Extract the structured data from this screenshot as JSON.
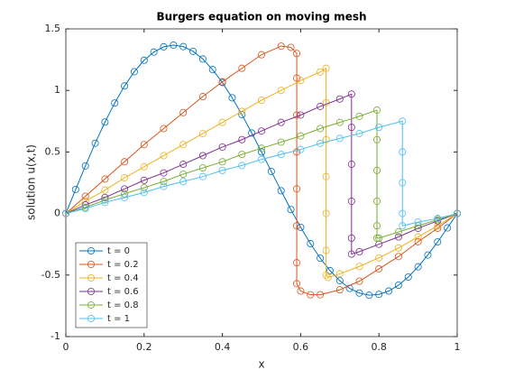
{
  "chart_data": {
    "type": "line",
    "title": "Burgers equation on moving mesh",
    "xlabel": "x",
    "ylabel": "solution u(x,t)",
    "xlim": [
      0,
      1
    ],
    "xticks": [
      0,
      0.2,
      0.4,
      0.6,
      0.8,
      1
    ],
    "ylim": [
      -1,
      1.5
    ],
    "yticks": [
      -1,
      -0.5,
      0,
      0.5,
      1,
      1.5
    ],
    "legend": "lower left",
    "markers": "circle",
    "series": [
      {
        "name": "t = 0",
        "color": "#0072BD",
        "x": [
          0,
          0.025,
          0.05,
          0.075,
          0.1,
          0.125,
          0.15,
          0.175,
          0.2,
          0.225,
          0.25,
          0.275,
          0.3,
          0.325,
          0.35,
          0.375,
          0.4,
          0.425,
          0.45,
          0.475,
          0.5,
          0.525,
          0.55,
          0.575,
          0.6,
          0.625,
          0.65,
          0.675,
          0.7,
          0.725,
          0.75,
          0.775,
          0.8,
          0.825,
          0.85,
          0.875,
          0.9,
          0.925,
          0.95,
          0.975,
          1
        ],
        "values": [
          0,
          0.195,
          0.387,
          0.571,
          0.743,
          0.898,
          1.036,
          1.152,
          1.245,
          1.312,
          1.354,
          1.368,
          1.356,
          1.318,
          1.255,
          1.169,
          1.064,
          0.94,
          0.803,
          0.654,
          0.5,
          0.342,
          0.185,
          0.032,
          -0.112,
          -0.245,
          -0.363,
          -0.464,
          -0.546,
          -0.608,
          -0.646,
          -0.664,
          -0.657,
          -0.63,
          -0.582,
          -0.516,
          -0.433,
          -0.337,
          -0.231,
          -0.117,
          0
        ]
      },
      {
        "name": "t = 0.2",
        "color": "#D95319",
        "x": [
          0,
          0.05,
          0.1,
          0.15,
          0.2,
          0.25,
          0.3,
          0.35,
          0.4,
          0.45,
          0.5,
          0.55,
          0.575,
          0.59,
          0.59,
          0.59,
          0.59,
          0.59,
          0.59,
          0.59,
          0.59,
          0.6,
          0.625,
          0.65,
          0.7,
          0.75,
          0.8,
          0.85,
          0.9,
          0.95,
          1
        ],
        "values": [
          0,
          0.14,
          0.28,
          0.42,
          0.56,
          0.69,
          0.82,
          0.95,
          1.07,
          1.18,
          1.29,
          1.36,
          1.35,
          1.3,
          1.1,
          0.8,
          0.5,
          0.2,
          -0.1,
          -0.4,
          -0.57,
          -0.63,
          -0.66,
          -0.66,
          -0.62,
          -0.55,
          -0.45,
          -0.35,
          -0.23,
          -0.12,
          0
        ]
      },
      {
        "name": "t = 0.4",
        "color": "#EDB120",
        "x": [
          0,
          0.05,
          0.1,
          0.15,
          0.2,
          0.25,
          0.3,
          0.35,
          0.4,
          0.45,
          0.5,
          0.55,
          0.6,
          0.65,
          0.665,
          0.665,
          0.665,
          0.665,
          0.665,
          0.665,
          0.665,
          0.67,
          0.7,
          0.75,
          0.8,
          0.85,
          0.9,
          0.95,
          1
        ],
        "values": [
          0,
          0.1,
          0.19,
          0.29,
          0.38,
          0.47,
          0.56,
          0.65,
          0.74,
          0.83,
          0.92,
          1.0,
          1.08,
          1.15,
          1.18,
          0.9,
          0.6,
          0.3,
          0,
          -0.3,
          -0.5,
          -0.52,
          -0.49,
          -0.43,
          -0.36,
          -0.28,
          -0.19,
          -0.1,
          0
        ]
      },
      {
        "name": "t = 0.6",
        "color": "#7E2F8E",
        "x": [
          0,
          0.05,
          0.1,
          0.15,
          0.2,
          0.25,
          0.3,
          0.35,
          0.4,
          0.45,
          0.5,
          0.55,
          0.6,
          0.65,
          0.7,
          0.73,
          0.73,
          0.73,
          0.73,
          0.73,
          0.73,
          0.75,
          0.8,
          0.85,
          0.9,
          0.95,
          1
        ],
        "values": [
          0,
          0.07,
          0.13,
          0.2,
          0.27,
          0.33,
          0.4,
          0.47,
          0.54,
          0.6,
          0.67,
          0.74,
          0.8,
          0.87,
          0.93,
          0.97,
          0.7,
          0.4,
          0.1,
          -0.2,
          -0.33,
          -0.31,
          -0.25,
          -0.19,
          -0.12,
          -0.06,
          0
        ]
      },
      {
        "name": "t = 0.8",
        "color": "#77AC30",
        "x": [
          0,
          0.05,
          0.1,
          0.15,
          0.2,
          0.25,
          0.3,
          0.35,
          0.4,
          0.45,
          0.5,
          0.55,
          0.6,
          0.65,
          0.7,
          0.75,
          0.795,
          0.795,
          0.795,
          0.795,
          0.795,
          0.795,
          0.8,
          0.85,
          0.9,
          0.95,
          1
        ],
        "values": [
          0,
          0.05,
          0.11,
          0.16,
          0.21,
          0.26,
          0.32,
          0.37,
          0.42,
          0.48,
          0.53,
          0.58,
          0.63,
          0.69,
          0.74,
          0.79,
          0.84,
          0.6,
          0.35,
          0.1,
          -0.1,
          -0.2,
          -0.2,
          -0.15,
          -0.1,
          -0.05,
          0
        ]
      },
      {
        "name": "t = 1",
        "color": "#4DBEEE",
        "x": [
          0,
          0.05,
          0.1,
          0.15,
          0.2,
          0.25,
          0.3,
          0.35,
          0.4,
          0.45,
          0.5,
          0.55,
          0.6,
          0.65,
          0.7,
          0.75,
          0.8,
          0.86,
          0.86,
          0.86,
          0.86,
          0.86,
          0.9,
          0.95,
          1
        ],
        "values": [
          0,
          0.04,
          0.09,
          0.13,
          0.17,
          0.22,
          0.26,
          0.3,
          0.35,
          0.39,
          0.44,
          0.48,
          0.52,
          0.57,
          0.61,
          0.65,
          0.7,
          0.75,
          0.5,
          0.25,
          0,
          -0.1,
          -0.07,
          -0.04,
          0
        ]
      }
    ]
  }
}
